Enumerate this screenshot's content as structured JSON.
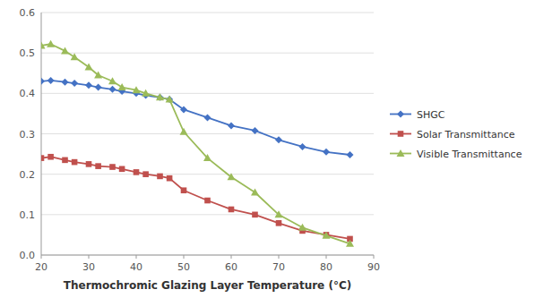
{
  "chart_data": {
    "type": "line",
    "xlabel": "Thermochromic Glazing Layer Temperature (°C)",
    "x": [
      20,
      22,
      25,
      27,
      30,
      32,
      35,
      37,
      40,
      42,
      45,
      47,
      50,
      55,
      60,
      65,
      70,
      75,
      80,
      85
    ],
    "series": [
      {
        "name": "SHGC",
        "color": "#4472C4",
        "marker": "diamond",
        "values": [
          0.43,
          0.432,
          0.428,
          0.425,
          0.42,
          0.415,
          0.41,
          0.405,
          0.4,
          0.395,
          0.39,
          0.385,
          0.36,
          0.34,
          0.32,
          0.308,
          0.285,
          0.268,
          0.255,
          0.248
        ]
      },
      {
        "name": "Solar Transmittance",
        "color": "#C0504D",
        "marker": "square",
        "values": [
          0.24,
          0.243,
          0.235,
          0.23,
          0.225,
          0.22,
          0.218,
          0.213,
          0.205,
          0.2,
          0.195,
          0.19,
          0.16,
          0.135,
          0.113,
          0.1,
          0.079,
          0.06,
          0.05,
          0.04
        ]
      },
      {
        "name": "Visible Transmittance",
        "color": "#9BBB59",
        "marker": "triangle",
        "values": [
          0.518,
          0.522,
          0.505,
          0.49,
          0.465,
          0.445,
          0.43,
          0.415,
          0.408,
          0.4,
          0.39,
          0.385,
          0.305,
          0.24,
          0.193,
          0.155,
          0.1,
          0.068,
          0.048,
          0.028
        ]
      }
    ],
    "xlim": [
      20,
      90
    ],
    "ylim": [
      0,
      0.6
    ],
    "xticks": [
      20,
      30,
      40,
      50,
      60,
      70,
      80,
      90
    ],
    "yticks": [
      {
        "value": 0,
        "label": "0.0"
      },
      0.1,
      0.2,
      0.3,
      0.4,
      0.5,
      0.6
    ],
    "grid": true,
    "legend": "right"
  }
}
